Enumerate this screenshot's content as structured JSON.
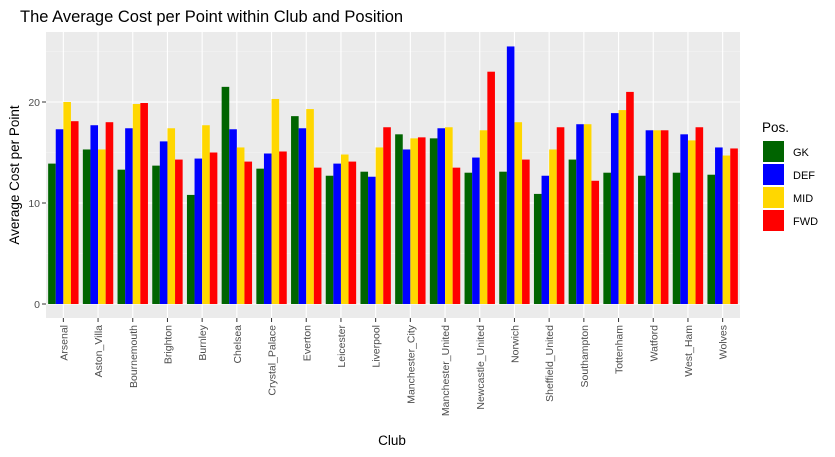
{
  "chart_data": {
    "type": "bar",
    "title": "The Average Cost per Point within Club and Position",
    "xlabel": "Club",
    "ylabel": "Average Cost per Point",
    "ylim": [
      0,
      26
    ],
    "yticks": [
      0,
      10,
      20
    ],
    "grid": true,
    "legend": {
      "title": "Pos.",
      "placement": "right"
    },
    "categories": [
      "Arsenal",
      "Aston_Villa",
      "Bournemouth",
      "Brighton",
      "Burnley",
      "Chelsea",
      "Crystal_Palace",
      "Everton",
      "Leicester",
      "Liverpool",
      "Manchester_City",
      "Manchester_United",
      "Newcastle_United",
      "Norwich",
      "Sheffield_United",
      "Southampton",
      "Tottenham",
      "Watford",
      "West_Ham",
      "Wolves"
    ],
    "series": [
      {
        "name": "GK",
        "color": "#006400",
        "values": [
          13.9,
          15.3,
          13.3,
          13.7,
          10.8,
          21.5,
          13.4,
          18.6,
          12.7,
          13.1,
          16.8,
          16.4,
          13.0,
          13.1,
          10.9,
          14.3,
          13.0,
          12.7,
          13.0,
          12.8
        ]
      },
      {
        "name": "DEF",
        "color": "#0000FF",
        "values": [
          17.3,
          17.7,
          17.4,
          16.1,
          14.4,
          17.3,
          14.9,
          17.4,
          13.9,
          12.6,
          15.3,
          17.4,
          14.5,
          25.5,
          12.7,
          17.8,
          18.9,
          17.2,
          16.8,
          15.5
        ]
      },
      {
        "name": "MID",
        "color": "#FFD700",
        "values": [
          20.0,
          15.3,
          19.8,
          17.4,
          17.7,
          15.5,
          20.3,
          19.3,
          14.8,
          15.5,
          16.4,
          17.5,
          17.2,
          18.0,
          15.3,
          17.8,
          19.2,
          17.2,
          16.2,
          14.7
        ]
      },
      {
        "name": "FWD",
        "color": "#FF0000",
        "values": [
          18.1,
          18.0,
          19.9,
          14.3,
          15.0,
          14.1,
          15.1,
          13.5,
          14.1,
          17.5,
          16.5,
          13.5,
          23.0,
          14.3,
          17.5,
          12.2,
          21.0,
          17.2,
          17.5,
          15.4
        ]
      }
    ]
  }
}
